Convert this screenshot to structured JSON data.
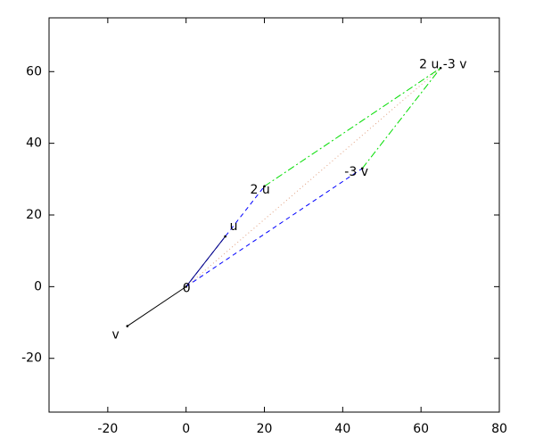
{
  "chart_data": {
    "type": "vector",
    "xlim": [
      -35,
      80
    ],
    "ylim": [
      -35,
      75
    ],
    "xticks": [
      -20,
      0,
      20,
      40,
      60,
      80
    ],
    "yticks": [
      -20,
      0,
      20,
      40,
      60
    ],
    "points": [
      {
        "label": "0",
        "x": 0,
        "y": 0
      },
      {
        "label": "u",
        "x": 10,
        "y": 14
      },
      {
        "label": "v",
        "x": -15,
        "y": -11
      },
      {
        "label": "2 u",
        "x": 20,
        "y": 28
      },
      {
        "label": "-3 v",
        "x": 45,
        "y": 33
      },
      {
        "label": "2 u -3 v",
        "x": 65,
        "y": 61
      }
    ],
    "segments": [
      {
        "from": 0,
        "to": 3,
        "color": "#0000ff",
        "style": "dashed"
      },
      {
        "from": 0,
        "to": 4,
        "color": "#0000ff",
        "style": "dashed"
      },
      {
        "from": 3,
        "to": 5,
        "color": "#00dd00",
        "style": "dashdot"
      },
      {
        "from": 4,
        "to": 5,
        "color": "#00dd00",
        "style": "dashdot"
      },
      {
        "from": 0,
        "to": 5,
        "color": "#e0a080",
        "style": "dotted"
      },
      {
        "from": 0,
        "to": 1,
        "color": "#000080",
        "style": "solid"
      },
      {
        "from": 0,
        "to": 2,
        "color": "#000000",
        "style": "solid"
      }
    ]
  }
}
